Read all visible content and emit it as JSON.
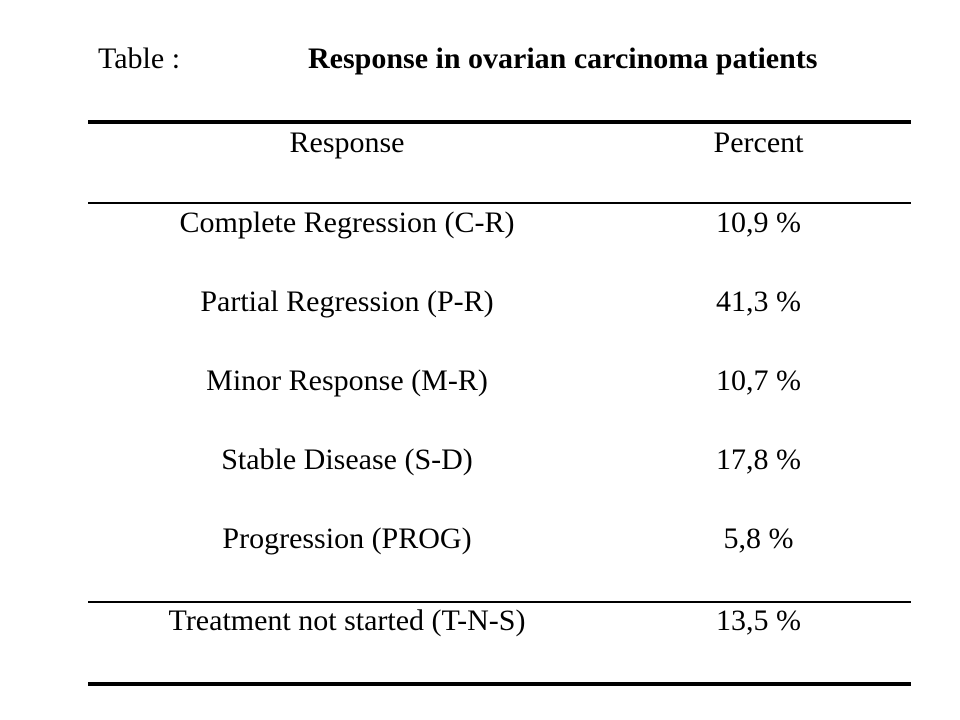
{
  "caption": {
    "label": "Table  :",
    "title": "Response in ovarian carcinoma patients"
  },
  "table": {
    "headers": [
      "Response",
      "Percent"
    ],
    "rows": [
      [
        "Complete Regression (C-R)",
        "10,9 %"
      ],
      [
        "Partial Regression (P-R)",
        "41,3 %"
      ],
      [
        "Minor Response (M-R)",
        "10,7 %"
      ],
      [
        "Stable Disease (S-D)",
        "17,8 %"
      ],
      [
        "Progression (PROG)",
        "5,8 %"
      ],
      [
        "Treatment not started (T-N-S)",
        "13,5 %"
      ]
    ]
  }
}
